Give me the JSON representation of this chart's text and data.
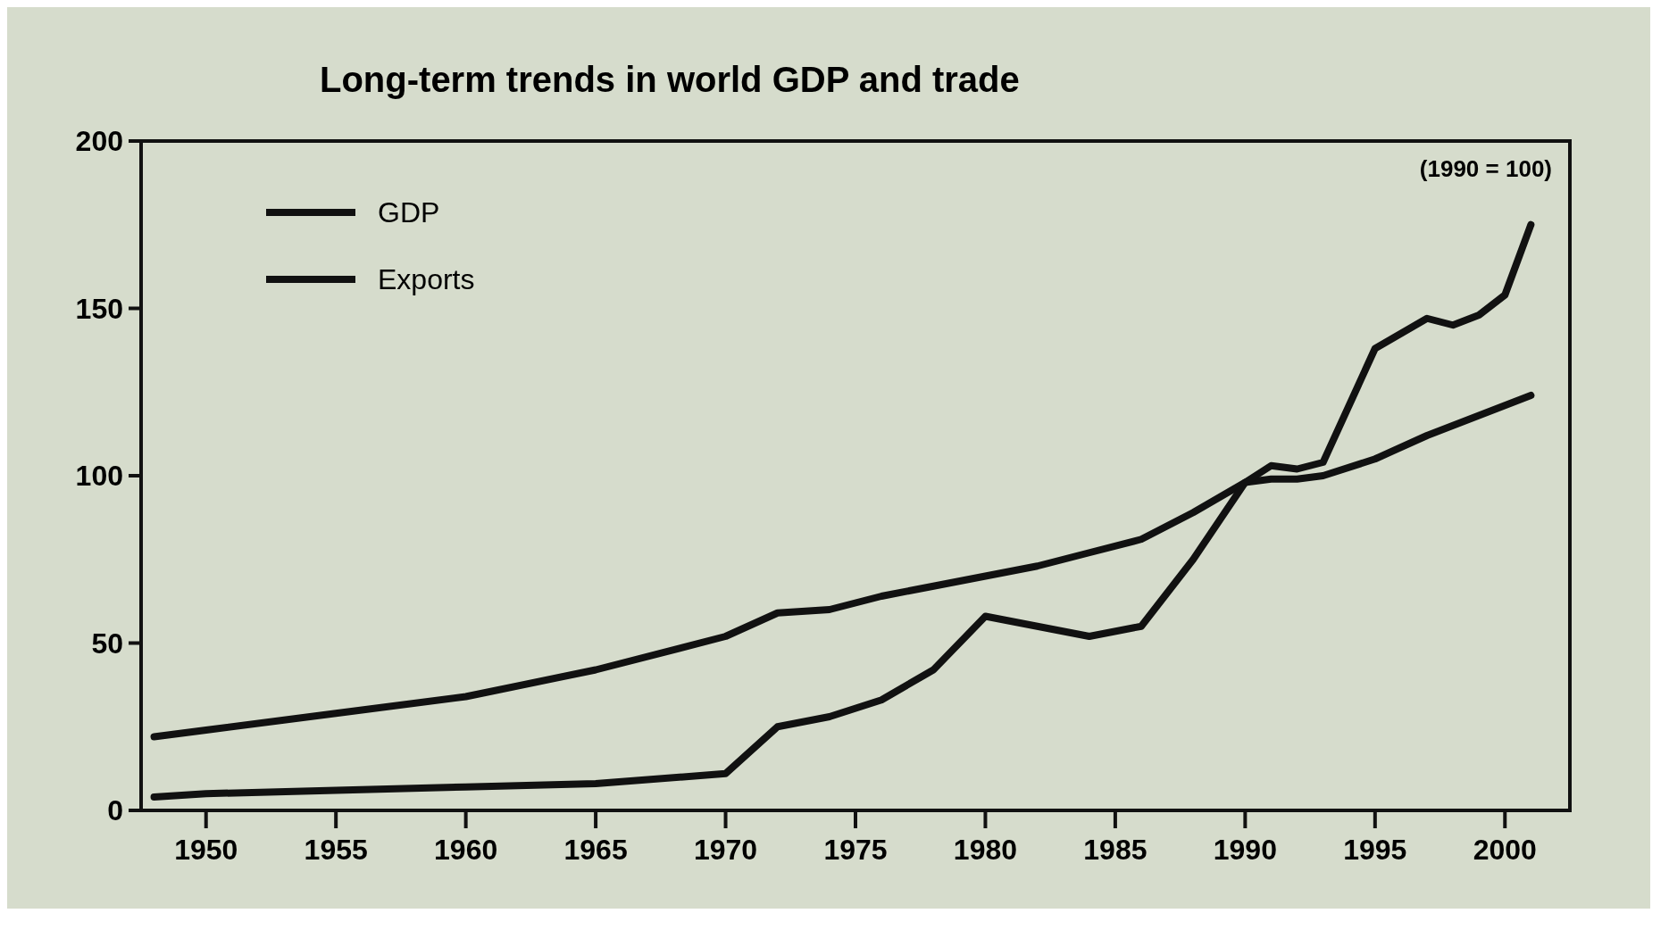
{
  "chart_data": {
    "type": "line",
    "title": "Long-term trends in world GDP and trade",
    "annotations": [
      "(1990 = 100)"
    ],
    "xlim": [
      1947.5,
      2002.5
    ],
    "xticks": [
      1950,
      1955,
      1960,
      1965,
      1970,
      1975,
      1980,
      1985,
      1990,
      1995,
      2000
    ],
    "ylim": [
      0,
      200
    ],
    "yticks": [
      0,
      50,
      100,
      150,
      200
    ],
    "legend": "top left",
    "x": [
      1948,
      1950,
      1955,
      1960,
      1965,
      1970,
      1972,
      1974,
      1976,
      1978,
      1980,
      1982,
      1984,
      1986,
      1988,
      1990,
      1991,
      1992,
      1993,
      1995,
      1997,
      1998,
      1999,
      2000,
      2001
    ],
    "series": [
      {
        "name": "GDP",
        "color": "#111111",
        "values": [
          22,
          24,
          29,
          34,
          42,
          52,
          59,
          60,
          64,
          67,
          70,
          73,
          77,
          81,
          89,
          98,
          99,
          99,
          100,
          105,
          112,
          115,
          118,
          121,
          124
        ]
      },
      {
        "name": "Exports",
        "color": "#111111",
        "values": [
          4,
          5,
          6,
          7,
          8,
          11,
          25,
          28,
          33,
          42,
          58,
          55,
          52,
          55,
          75,
          98,
          103,
          102,
          104,
          138,
          147,
          145,
          148,
          154,
          175
        ]
      }
    ]
  }
}
